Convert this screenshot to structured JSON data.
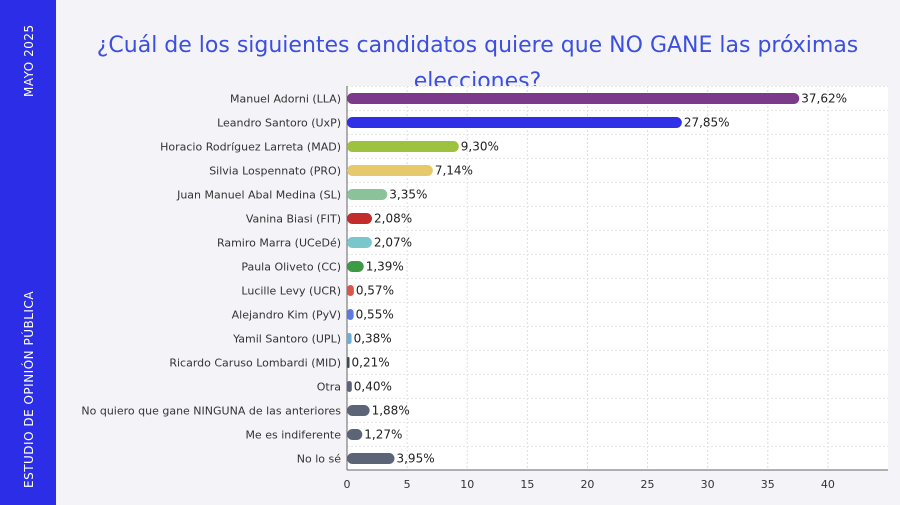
{
  "sidebar": {
    "top_text": "MAYO 2025",
    "bottom_text": "ESTUDIO DE OPINIÓN PÚBLICA",
    "color": "#2b2ee6"
  },
  "chart_data": {
    "type": "bar",
    "orientation": "horizontal",
    "title": "¿Cuál de los siguientes candidatos quiere que NO GANE las próximas elecciones?",
    "categories": [
      "Manuel Adorni (LLA)",
      "Leandro Santoro (UxP)",
      "Horacio Rodríguez Larreta (MAD)",
      "Silvia Lospennato (PRO)",
      "Juan Manuel Abal Medina (SL)",
      "Vanina Biasi (FIT)",
      "Ramiro Marra (UCeDé)",
      "Paula Oliveto (CC)",
      "Lucille Levy (UCR)",
      "Alejandro Kim (PyV)",
      "Yamil Santoro (UPL)",
      "Ricardo Caruso Lombardi (MID)",
      "Otra",
      "No quiero que gane NINGUNA de las anteriores",
      "Me es indiferente",
      "No lo sé"
    ],
    "values": [
      37.62,
      27.85,
      9.3,
      7.14,
      3.35,
      2.08,
      2.07,
      1.39,
      0.57,
      0.55,
      0.38,
      0.21,
      0.4,
      1.88,
      1.27,
      3.95
    ],
    "value_labels": [
      "37,62%",
      "27,85%",
      "9,30%",
      "7,14%",
      "3,35%",
      "2,08%",
      "2,07%",
      "1,39%",
      "0,57%",
      "0,55%",
      "0,38%",
      "0,21%",
      "0,40%",
      "1,88%",
      "1,27%",
      "3,95%"
    ],
    "colors": [
      "#7b3a8a",
      "#2f2fe8",
      "#9cc23e",
      "#e6c96a",
      "#8cc29a",
      "#c42b2b",
      "#78c7cc",
      "#3f9a45",
      "#d9564a",
      "#5b7be0",
      "#6aaedb",
      "#3e4a5c",
      "#5c6478",
      "#5c6478",
      "#5c6478",
      "#5c6478"
    ],
    "xlim": [
      0,
      45
    ],
    "xticks": [
      0,
      5,
      10,
      15,
      20,
      25,
      30,
      35,
      40
    ],
    "xtick_labels": [
      "0",
      "5",
      "10",
      "15",
      "20",
      "25",
      "30",
      "35",
      "40"
    ],
    "grid": true
  }
}
